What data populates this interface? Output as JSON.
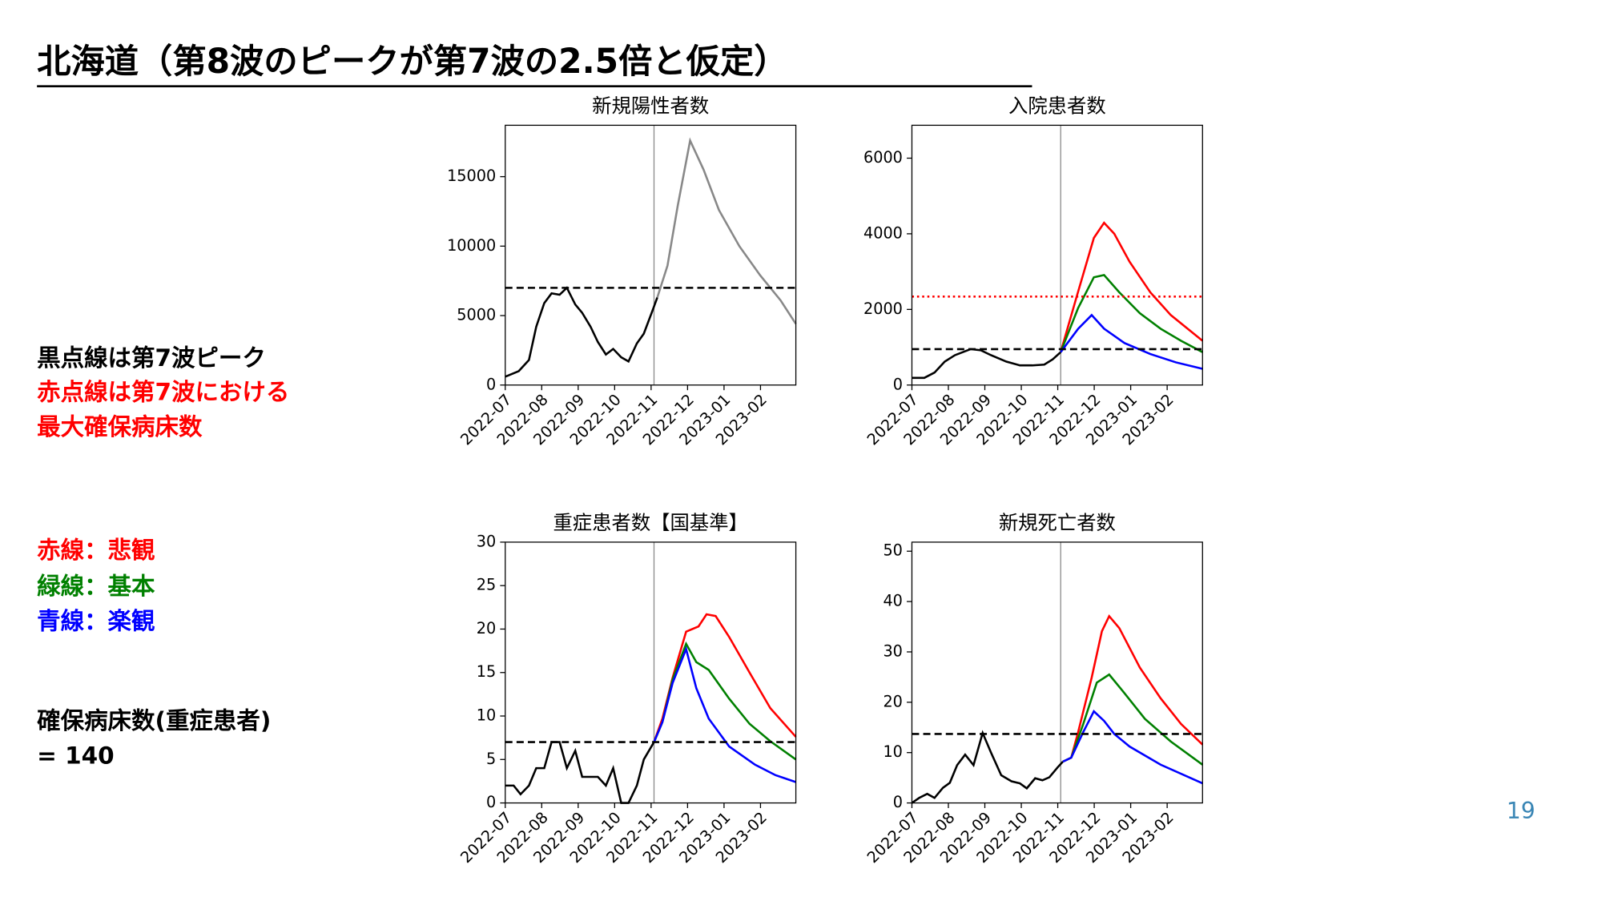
{
  "slide": {
    "title": "北海道（第8波のピークが第7波の2.5倍と仮定）",
    "notes": [
      {
        "text": "黒点線は第7波ピーク",
        "color": "#000000"
      },
      {
        "text": "赤点線は第7波における",
        "color": "#ff0000"
      },
      {
        "text": "最大確保病床数",
        "color": "#ff0000"
      },
      {
        "text": "赤線：悲観",
        "color": "#ff0000"
      },
      {
        "text": "緑線：基本",
        "color": "#008000"
      },
      {
        "text": "青線：楽観",
        "color": "#0000ff"
      },
      {
        "text": "確保病床数(重症患者)",
        "color": "#000000"
      },
      {
        "text": "= 140",
        "color": "#000000"
      }
    ],
    "page_number": "19"
  },
  "chart_data": [
    {
      "type": "line",
      "title": "新規陽性者数",
      "xlim": [
        0,
        7.97
      ],
      "ylim": [
        0,
        18700
      ],
      "xticks": [
        {
          "value": 0,
          "label": "2022-07"
        },
        {
          "value": 1,
          "label": "2022-08"
        },
        {
          "value": 2,
          "label": "2022-09"
        },
        {
          "value": 3,
          "label": "2022-10"
        },
        {
          "value": 4,
          "label": "2022-11"
        },
        {
          "value": 5,
          "label": "2022-12"
        },
        {
          "value": 6,
          "label": "2023-01"
        },
        {
          "value": 7,
          "label": "2023-02"
        }
      ],
      "yticks": [
        0,
        5000,
        10000,
        15000
      ],
      "vline": 4.08,
      "hlines": [
        {
          "value": 7000,
          "color": "#000000",
          "style": "dashed"
        }
      ],
      "series": [
        {
          "color": "#000000",
          "x": [
            0,
            0.37,
            0.65,
            0.85,
            1.07,
            1.27,
            1.49,
            1.69,
            1.92,
            2.11,
            2.34,
            2.54,
            2.76,
            2.96,
            3.18,
            3.38,
            3.61,
            3.8,
            4.03,
            4.17
          ],
          "values": [
            600,
            1000,
            1800,
            4200,
            5900,
            6600,
            6500,
            7000,
            5800,
            5200,
            4200,
            3100,
            2200,
            2600,
            2000,
            1700,
            3000,
            3700,
            5300,
            6300
          ]
        },
        {
          "color": "#888888",
          "x": [
            4.17,
            4.45,
            4.73,
            5.07,
            5.44,
            5.86,
            6.42,
            6.99,
            7.55,
            7.97
          ],
          "values": [
            6300,
            8600,
            12900,
            17600,
            15500,
            12600,
            10000,
            7900,
            6100,
            4400
          ]
        }
      ]
    },
    {
      "type": "line",
      "title": "入院患者数",
      "xlim": [
        0,
        7.97
      ],
      "ylim": [
        0,
        6870
      ],
      "xticks": [
        {
          "value": 0,
          "label": "2022-07"
        },
        {
          "value": 1,
          "label": "2022-08"
        },
        {
          "value": 2,
          "label": "2022-09"
        },
        {
          "value": 3,
          "label": "2022-10"
        },
        {
          "value": 4,
          "label": "2022-11"
        },
        {
          "value": 5,
          "label": "2022-12"
        },
        {
          "value": 6,
          "label": "2023-01"
        },
        {
          "value": 7,
          "label": "2023-02"
        }
      ],
      "yticks": [
        0,
        2000,
        4000,
        6000
      ],
      "vline": 4.08,
      "hlines": [
        {
          "value": 950,
          "color": "#000000",
          "style": "dashed"
        },
        {
          "value": 2340,
          "color": "#ff0000",
          "style": "dotted"
        }
      ],
      "series": [
        {
          "color": "#000000",
          "x": [
            0,
            0.34,
            0.62,
            0.9,
            1.18,
            1.61,
            1.89,
            2.17,
            2.59,
            2.96,
            3.3,
            3.63,
            3.86,
            4.08
          ],
          "values": [
            190,
            190,
            330,
            620,
            790,
            950,
            920,
            790,
            620,
            520,
            520,
            540,
            680,
            870
          ]
        },
        {
          "color": "#ff0000",
          "x": [
            4.08,
            4.51,
            4.99,
            5.27,
            5.55,
            5.97,
            6.54,
            7.1,
            7.97
          ],
          "values": [
            870,
            2310,
            3890,
            4290,
            4000,
            3260,
            2450,
            1850,
            1170
          ]
        },
        {
          "color": "#008000",
          "x": [
            4.08,
            4.56,
            4.99,
            5.27,
            5.69,
            6.25,
            6.82,
            7.38,
            7.97
          ],
          "values": [
            870,
            2040,
            2850,
            2910,
            2450,
            1900,
            1490,
            1170,
            870
          ]
        },
        {
          "color": "#0000ff",
          "x": [
            4.08,
            4.56,
            4.93,
            5.27,
            5.83,
            6.54,
            7.24,
            7.97
          ],
          "values": [
            870,
            1490,
            1850,
            1490,
            1110,
            820,
            600,
            430
          ]
        }
      ]
    },
    {
      "type": "line",
      "title": "重症患者数【国基準】",
      "xlim": [
        0,
        7.97
      ],
      "ylim": [
        0,
        30
      ],
      "xticks": [
        {
          "value": 0,
          "label": "2022-07"
        },
        {
          "value": 1,
          "label": "2022-08"
        },
        {
          "value": 2,
          "label": "2022-09"
        },
        {
          "value": 3,
          "label": "2022-10"
        },
        {
          "value": 4,
          "label": "2022-11"
        },
        {
          "value": 5,
          "label": "2022-12"
        },
        {
          "value": 6,
          "label": "2023-01"
        },
        {
          "value": 7,
          "label": "2023-02"
        }
      ],
      "yticks": [
        0,
        5,
        10,
        15,
        20,
        25,
        30
      ],
      "vline": 4.08,
      "hlines": [
        {
          "value": 7,
          "color": "#000000",
          "style": "dashed"
        }
      ],
      "series": [
        {
          "color": "#000000",
          "x": [
            0,
            0.23,
            0.42,
            0.65,
            0.85,
            1.07,
            1.27,
            1.49,
            1.69,
            1.92,
            2.11,
            2.34,
            2.54,
            2.76,
            2.96,
            3.18,
            3.38,
            3.61,
            3.8,
            4.08
          ],
          "values": [
            2,
            2,
            1,
            2,
            4,
            4,
            7,
            7,
            4,
            6,
            3,
            3,
            3,
            2,
            4,
            0,
            0,
            2,
            5,
            7
          ]
        },
        {
          "color": "#ff0000",
          "x": [
            4.08,
            4.31,
            4.59,
            4.96,
            5.3,
            5.52,
            5.77,
            6.14,
            6.7,
            7.27,
            7.97
          ],
          "values": [
            7,
            9.7,
            14.4,
            19.7,
            20.3,
            21.7,
            21.5,
            19.1,
            15,
            10.9,
            7.6
          ]
        },
        {
          "color": "#008000",
          "x": [
            4.08,
            4.31,
            4.59,
            4.96,
            5.24,
            5.58,
            6.14,
            6.7,
            7.27,
            7.97
          ],
          "values": [
            7,
            9.3,
            14.2,
            18.3,
            16.2,
            15.3,
            12,
            9.1,
            7.1,
            5
          ]
        },
        {
          "color": "#0000ff",
          "x": [
            4.08,
            4.31,
            4.59,
            4.96,
            5.24,
            5.58,
            6.14,
            6.85,
            7.41,
            7.97
          ],
          "values": [
            7,
            9.3,
            13.8,
            17.7,
            13.2,
            9.7,
            6.5,
            4.4,
            3.2,
            2.4
          ]
        }
      ]
    },
    {
      "type": "line",
      "title": "新規死亡者数",
      "xlim": [
        0,
        7.97
      ],
      "ylim": [
        0,
        51.8
      ],
      "xticks": [
        {
          "value": 0,
          "label": "2022-07"
        },
        {
          "value": 1,
          "label": "2022-08"
        },
        {
          "value": 2,
          "label": "2022-09"
        },
        {
          "value": 3,
          "label": "2022-10"
        },
        {
          "value": 4,
          "label": "2022-11"
        },
        {
          "value": 5,
          "label": "2022-12"
        },
        {
          "value": 6,
          "label": "2023-01"
        },
        {
          "value": 7,
          "label": "2023-02"
        }
      ],
      "yticks": [
        0,
        10,
        20,
        30,
        40,
        50
      ],
      "vline": 4.08,
      "hlines": [
        {
          "value": 13.7,
          "color": "#000000",
          "style": "dashed"
        }
      ],
      "series": [
        {
          "color": "#000000",
          "x": [
            0,
            0.2,
            0.42,
            0.62,
            0.85,
            1.04,
            1.24,
            1.46,
            1.69,
            1.94,
            2.17,
            2.45,
            2.73,
            2.96,
            3.15,
            3.38,
            3.58,
            3.77,
            4,
            4.14
          ],
          "values": [
            0,
            1,
            1.8,
            1,
            3,
            4,
            7.5,
            9.6,
            7.5,
            13.9,
            10,
            5.5,
            4.3,
            3.9,
            2.9,
            4.9,
            4.5,
            5.1,
            7.1,
            8.2
          ]
        },
        {
          "color": "#ff0000",
          "x": [
            4.14,
            4.37,
            4.56,
            4.93,
            5.21,
            5.41,
            5.69,
            6.25,
            6.82,
            7.38,
            7.97
          ],
          "values": [
            8.2,
            9,
            14.1,
            24.9,
            34.1,
            37.1,
            34.7,
            26.9,
            20.8,
            15.7,
            11.6
          ]
        },
        {
          "color": "#008000",
          "x": [
            4.14,
            4.37,
            4.7,
            5.07,
            5.41,
            5.83,
            6.39,
            7.1,
            7.97
          ],
          "values": [
            8.2,
            9,
            15.7,
            23.9,
            25.5,
            21.8,
            16.7,
            12.2,
            7.6
          ]
        },
        {
          "color": "#0000ff",
          "x": [
            4.14,
            4.37,
            4.7,
            4.99,
            5.27,
            5.55,
            5.97,
            6.82,
            7.97
          ],
          "values": [
            8.2,
            9,
            14.1,
            18.2,
            16.3,
            13.7,
            11.2,
            7.6,
            3.9
          ]
        }
      ]
    }
  ]
}
